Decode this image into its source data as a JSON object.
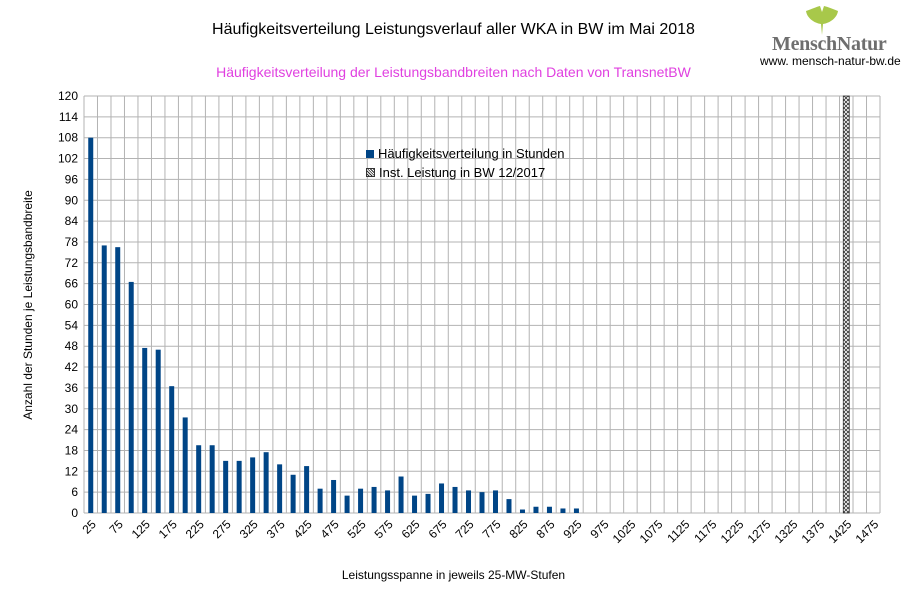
{
  "header": {
    "title": "Häufigkeitsverteilung Leistungsverlauf aller WKA in BW im Mai 2018",
    "subtitle": "Häufigkeitsverteilung der Leistungsbandbreiten nach Daten von TransnetBW",
    "subtitle_color": "#e040e0"
  },
  "logo": {
    "name": "MenschNatur",
    "url": "www. mensch-natur-bw.de",
    "leaf_color": "#a8c84a",
    "icon": "ginkgo-leaf-icon"
  },
  "colors": {
    "bar": "#004586",
    "hatch": "#333333",
    "grid": "#b3b3b3"
  },
  "chart_data": {
    "type": "bar",
    "xlabel": "Leistungsspanne in jeweils 25-MW-Stufen",
    "ylabel": "Anzahl der Stunden je Leistungsbandbreite",
    "ylim": [
      0,
      120
    ],
    "yticks": [
      0,
      6,
      12,
      18,
      24,
      30,
      36,
      42,
      48,
      54,
      60,
      66,
      72,
      78,
      84,
      90,
      96,
      102,
      108,
      114,
      120
    ],
    "x_tick_labels": [
      "25",
      "75",
      "125",
      "175",
      "225",
      "275",
      "325",
      "375",
      "425",
      "475",
      "525",
      "575",
      "625",
      "675",
      "725",
      "775",
      "825",
      "875",
      "925",
      "975",
      "1025",
      "1075",
      "1125",
      "1175",
      "1225",
      "1275",
      "1325",
      "1375",
      "1425",
      "1475"
    ],
    "categories": [
      25,
      50,
      75,
      100,
      125,
      150,
      175,
      200,
      225,
      250,
      275,
      300,
      325,
      350,
      375,
      400,
      425,
      450,
      475,
      500,
      525,
      550,
      575,
      600,
      625,
      650,
      675,
      700,
      725,
      750,
      775,
      800,
      825,
      850,
      875,
      900,
      925,
      950,
      975,
      1000,
      1025,
      1050,
      1075,
      1100,
      1125,
      1150,
      1175,
      1200,
      1225,
      1250,
      1275,
      1300,
      1325,
      1350,
      1375,
      1400,
      1425,
      1450,
      1475
    ],
    "grid": true,
    "legend_position": "top-center",
    "series": [
      {
        "name": "Häufigkeitsverteilung in Stunden",
        "values": [
          108,
          77,
          76.5,
          66.5,
          47.5,
          47,
          36.5,
          27.5,
          19.5,
          19.5,
          15,
          15,
          16,
          17.5,
          14,
          11,
          13.5,
          7,
          9.5,
          5,
          7,
          7.5,
          6.5,
          10.5,
          5,
          5.5,
          8.5,
          7.5,
          6.5,
          6,
          6.5,
          4,
          1,
          1.8,
          1.8,
          1.3,
          1.3,
          0,
          0,
          0,
          0,
          0,
          0,
          0,
          0,
          0,
          0,
          0,
          0,
          0,
          0,
          0,
          0,
          0,
          0,
          0,
          0,
          0,
          0
        ]
      },
      {
        "name": "Inst. Leistung in BW 12/2017",
        "values": [
          0,
          0,
          0,
          0,
          0,
          0,
          0,
          0,
          0,
          0,
          0,
          0,
          0,
          0,
          0,
          0,
          0,
          0,
          0,
          0,
          0,
          0,
          0,
          0,
          0,
          0,
          0,
          0,
          0,
          0,
          0,
          0,
          0,
          0,
          0,
          0,
          0,
          0,
          0,
          0,
          0,
          0,
          0,
          0,
          0,
          0,
          0,
          0,
          0,
          0,
          0,
          0,
          0,
          0,
          0,
          0,
          120,
          0,
          0
        ]
      }
    ]
  }
}
